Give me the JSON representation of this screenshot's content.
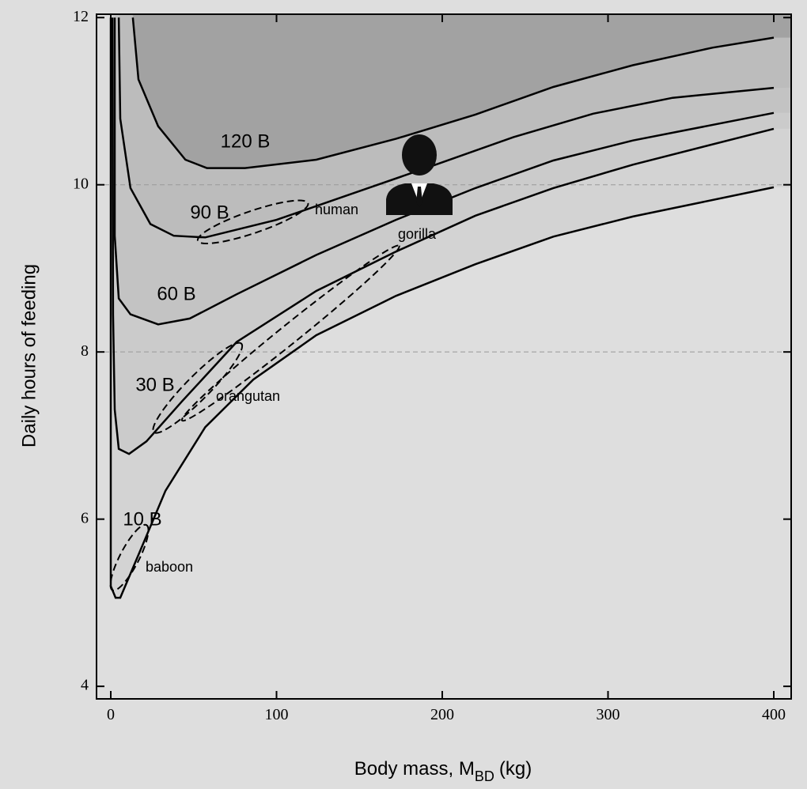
{
  "chart_data": {
    "type": "contour",
    "y_label": "Daily hours of feeding",
    "x_label": "Body mass, M",
    "x_label_sub": "BD",
    "x_label_end": "(kg)",
    "xlim": [
      -8.6,
      410.5
    ],
    "ylim": [
      3.85,
      12.04
    ],
    "xticks": [
      0,
      100,
      200,
      300,
      400
    ],
    "yticks": [
      4,
      6,
      8,
      10,
      12
    ],
    "hlines": [
      8,
      10
    ],
    "series": [
      {
        "name": "10 B",
        "color": "#d3d3d3",
        "x": [
          0,
          0,
          2.9,
          5.7,
          19,
          33,
          57,
          86,
          124,
          172,
          220,
          267,
          315,
          400
        ],
        "values": [
          12,
          5.2,
          5.06,
          5.06,
          5.68,
          6.34,
          7.1,
          7.67,
          8.2,
          8.67,
          9.05,
          9.38,
          9.62,
          9.97
        ]
      },
      {
        "name": "30 B",
        "color": "#cbcbcb",
        "x": [
          1,
          1.4,
          2.4,
          4.8,
          11,
          21.5,
          43,
          76,
          124,
          172,
          220,
          267,
          315,
          400
        ],
        "values": [
          12,
          8.45,
          7.31,
          6.84,
          6.78,
          6.93,
          7.41,
          8.12,
          8.73,
          9.2,
          9.63,
          9.96,
          10.24,
          10.67
        ]
      },
      {
        "name": "60 B",
        "color": "#c3c3c3",
        "x": [
          2.4,
          2.4,
          4.8,
          11.9,
          28.6,
          47.7,
          76,
          124,
          172,
          220,
          267,
          315,
          400
        ],
        "values": [
          12,
          9.39,
          8.64,
          8.45,
          8.33,
          8.4,
          8.69,
          9.16,
          9.58,
          9.96,
          10.29,
          10.53,
          10.86
        ]
      },
      {
        "name": "90 B",
        "color": "#bcbcbc",
        "x": [
          4.8,
          5.7,
          11.9,
          23.9,
          38,
          57,
          100,
          148,
          196,
          243,
          291,
          339,
          400
        ],
        "values": [
          12,
          10.79,
          9.96,
          9.53,
          9.39,
          9.37,
          9.58,
          9.91,
          10.24,
          10.57,
          10.85,
          11.04,
          11.16
        ]
      },
      {
        "name": "120 B",
        "color": "#a2a2a2",
        "x": [
          13.3,
          16.7,
          28.6,
          45,
          58,
          81,
          124,
          172,
          220,
          267,
          315,
          363,
          400
        ],
        "values": [
          12,
          11.26,
          10.7,
          10.3,
          10.2,
          10.2,
          10.3,
          10.55,
          10.84,
          11.17,
          11.43,
          11.64,
          11.76
        ]
      }
    ],
    "regions": [
      {
        "label": "human",
        "x": [
          52.5,
          119
        ],
        "y": [
          9.33,
          9.78
        ]
      },
      {
        "label": "gorilla",
        "x": [
          43,
          174
        ],
        "y": [
          7.18,
          9.27
        ]
      },
      {
        "label": "orangutan",
        "x": [
          26,
          78.8
        ],
        "y": [
          7.04,
          8.1
        ]
      },
      {
        "label": "baboon",
        "x": [
          1,
          21.5
        ],
        "y": [
          5.15,
          5.93
        ]
      }
    ]
  }
}
